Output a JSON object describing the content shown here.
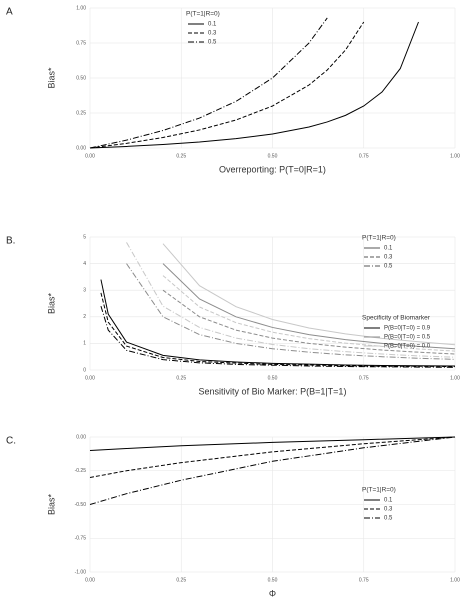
{
  "chart_data": [
    {
      "type": "line",
      "label": "A",
      "xlabel": "Overreporting: P(T=0|R=1)",
      "ylabel": "Bias*",
      "x": [
        0,
        0.1,
        0.2,
        0.3,
        0.4,
        0.5,
        0.6,
        0.65,
        0.7,
        0.75,
        0.8,
        0.85,
        0.9
      ],
      "xlim": [
        0,
        1
      ],
      "ylim": [
        0,
        1
      ],
      "grid": true,
      "xticks": [
        {
          "value": 0,
          "label": "0.00"
        },
        {
          "value": 0.25,
          "label": "0.25"
        },
        {
          "value": 0.5,
          "label": "0.50"
        },
        {
          "value": 0.75,
          "label": "0.75"
        },
        {
          "value": 1,
          "label": "1.00"
        }
      ],
      "yticks": [
        {
          "value": 0,
          "label": "0.00"
        },
        {
          "value": 0.25,
          "label": "0.25"
        },
        {
          "value": 0.5,
          "label": "0.50"
        },
        {
          "value": 0.75,
          "label": "0.75"
        },
        {
          "value": 1,
          "label": "1.00"
        }
      ],
      "legend_title": "P(T=1|R=0)",
      "series": [
        {
          "name": "0.1",
          "color": "#000000",
          "dash": "solid",
          "values": [
            0,
            0.011,
            0.025,
            0.043,
            0.067,
            0.1,
            0.15,
            0.186,
            0.233,
            0.3,
            0.4,
            0.567,
            0.9
          ]
        },
        {
          "name": "0.3",
          "color": "#000000",
          "dash": "dashed",
          "values": [
            0,
            0.033,
            0.075,
            0.129,
            0.2,
            0.3,
            0.45,
            0.557,
            0.7,
            0.9,
            null,
            null,
            null
          ]
        },
        {
          "name": "0.5",
          "color": "#000000",
          "dash": "dotdash",
          "values": [
            0,
            0.056,
            0.125,
            0.214,
            0.333,
            0.5,
            0.75,
            0.929,
            null,
            null,
            null,
            null,
            null
          ]
        }
      ]
    },
    {
      "type": "line",
      "label": "B.",
      "xlabel": "Sensitivity of Bio Marker: P(B=1|T=1)",
      "ylabel": "Bias*",
      "x": [
        0.03,
        0.05,
        0.1,
        0.2,
        0.3,
        0.4,
        0.5,
        0.6,
        0.7,
        0.8,
        0.9,
        1.0
      ],
      "xlim": [
        0,
        1
      ],
      "ylim": [
        0,
        5
      ],
      "grid": true,
      "xticks": [
        {
          "value": 0,
          "label": "0.00"
        },
        {
          "value": 0.25,
          "label": "0.25"
        },
        {
          "value": 0.5,
          "label": "0.50"
        },
        {
          "value": 0.75,
          "label": "0.75"
        },
        {
          "value": 1,
          "label": "1.00"
        }
      ],
      "yticks": [
        0,
        1,
        2,
        3,
        4,
        5
      ],
      "legends": [
        {
          "title": "P(T=1|R=0)",
          "entries": [
            {
              "label": "0.1",
              "dash": "solid",
              "color": "#555555"
            },
            {
              "label": "0.3",
              "dash": "dashed",
              "color": "#555555"
            },
            {
              "label": "0.5",
              "dash": "dotdash",
              "color": "#555555"
            }
          ]
        },
        {
          "title": "Specificity of Biomarker",
          "entries": [
            {
              "label": "P(B=0|T=0) = 0.9",
              "dash": "solid",
              "color": "#000000"
            },
            {
              "label": "P(B=0|T=0) = 0.5",
              "dash": "solid",
              "color": "#8c8c8c"
            },
            {
              "label": "P(B=0|T=0) = 0.0",
              "dash": "solid",
              "color": "#c8c8c8"
            }
          ]
        }
      ],
      "series": [
        {
          "color": "#000000",
          "dash": "solid",
          "values": [
            3.4,
            2.1,
            1.05,
            0.55,
            0.38,
            0.3,
            0.25,
            0.22,
            0.19,
            0.17,
            0.16,
            0.15
          ]
        },
        {
          "color": "#000000",
          "dash": "dashed",
          "values": [
            2.9,
            1.8,
            0.9,
            0.47,
            0.32,
            0.26,
            0.21,
            0.19,
            0.16,
            0.14,
            0.14,
            0.13
          ]
        },
        {
          "color": "#000000",
          "dash": "dotdash",
          "values": [
            2.4,
            1.5,
            0.74,
            0.39,
            0.27,
            0.21,
            0.18,
            0.15,
            0.13,
            0.12,
            0.11,
            0.1
          ]
        },
        {
          "color": "#8c8c8c",
          "dash": "solid",
          "values": [
            null,
            null,
            null,
            4,
            2.67,
            2,
            1.6,
            1.33,
            1.14,
            1,
            0.89,
            0.8
          ]
        },
        {
          "color": "#8c8c8c",
          "dash": "dashed",
          "values": [
            null,
            null,
            null,
            3,
            2,
            1.5,
            1.2,
            1,
            0.86,
            0.75,
            0.67,
            0.6
          ]
        },
        {
          "color": "#8c8c8c",
          "dash": "dotdash",
          "values": [
            null,
            null,
            4,
            2,
            1.33,
            1,
            0.8,
            0.67,
            0.57,
            0.5,
            0.44,
            0.4
          ]
        },
        {
          "color": "#c8c8c8",
          "dash": "solid",
          "values": [
            null,
            null,
            null,
            4.75,
            3.17,
            2.38,
            1.9,
            1.58,
            1.36,
            1.19,
            1.06,
            0.95
          ]
        },
        {
          "color": "#c8c8c8",
          "dash": "dashed",
          "values": [
            null,
            null,
            null,
            3.55,
            2.37,
            1.78,
            1.42,
            1.18,
            1.01,
            0.89,
            0.79,
            0.71
          ]
        },
        {
          "color": "#c8c8c8",
          "dash": "dotdash",
          "values": [
            null,
            null,
            4.8,
            2.4,
            1.6,
            1.2,
            0.96,
            0.8,
            0.69,
            0.6,
            0.53,
            0.48
          ]
        }
      ]
    },
    {
      "type": "line",
      "label": "C.",
      "xlabel": "Φ",
      "ylabel": "Bias*",
      "x": [
        0,
        0.1,
        0.25,
        0.5,
        0.75,
        1
      ],
      "xlim": [
        0,
        1
      ],
      "ylim": [
        -1,
        0
      ],
      "grid": true,
      "xticks": [
        {
          "value": 0,
          "label": "0.00"
        },
        {
          "value": 0.25,
          "label": "0.25"
        },
        {
          "value": 0.5,
          "label": "0.50"
        },
        {
          "value": 0.75,
          "label": "0.75"
        },
        {
          "value": 1,
          "label": "1.00"
        }
      ],
      "yticks": [
        {
          "value": -1,
          "label": "-1.00"
        },
        {
          "value": -0.75,
          "label": "-0.75"
        },
        {
          "value": -0.5,
          "label": "-0.50"
        },
        {
          "value": -0.25,
          "label": "-0.25"
        },
        {
          "value": 0,
          "label": "0.00"
        }
      ],
      "legend_title": "P(T=1|R=0)",
      "series": [
        {
          "name": "0.1",
          "color": "#000000",
          "dash": "solid",
          "values": [
            -0.1,
            -0.085,
            -0.065,
            -0.04,
            -0.02,
            0
          ]
        },
        {
          "name": "0.3",
          "color": "#000000",
          "dash": "dashed",
          "values": [
            -0.3,
            -0.25,
            -0.19,
            -0.11,
            -0.05,
            0
          ]
        },
        {
          "name": "0.5",
          "color": "#000000",
          "dash": "dotdash",
          "values": [
            -0.5,
            -0.42,
            -0.32,
            -0.18,
            -0.08,
            0
          ]
        }
      ]
    }
  ]
}
